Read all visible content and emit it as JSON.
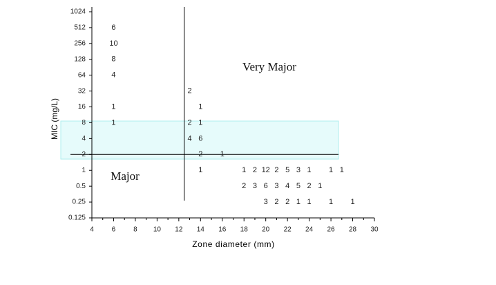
{
  "chart_data": {
    "type": "count-scatter",
    "x_label": "Zone diameter (mm)",
    "y_label": "MIC (mg/L)",
    "xlim": [
      4,
      30
    ],
    "xticks": [
      4,
      6,
      8,
      10,
      12,
      14,
      16,
      18,
      20,
      22,
      24,
      26,
      28,
      30
    ],
    "ylim": [
      0.125,
      1024
    ],
    "yticks": [
      1024,
      512,
      256,
      128,
      64,
      32,
      16,
      8,
      4,
      2,
      1,
      0.5,
      0.25,
      0.125
    ],
    "y_log_base": 2,
    "breakpoints": {
      "zone": 12.5,
      "mic": 2
    },
    "annotations": [
      "Very Major",
      "Major"
    ],
    "points": {
      "x": [
        6,
        6,
        6,
        6,
        6,
        6,
        13,
        13,
        13,
        14,
        14,
        14,
        14,
        14,
        16,
        18,
        19,
        20,
        21,
        22,
        23,
        24,
        26,
        27,
        18,
        19,
        20,
        21,
        22,
        23,
        24,
        25,
        20,
        21,
        22,
        23,
        24,
        26,
        28
      ],
      "y": [
        512,
        256,
        128,
        64,
        16,
        8,
        32,
        8,
        4,
        16,
        8,
        4,
        2,
        1,
        2,
        1,
        1,
        1,
        1,
        1,
        1,
        1,
        1,
        1,
        0.5,
        0.5,
        0.5,
        0.5,
        0.5,
        0.5,
        0.5,
        0.5,
        0.25,
        0.25,
        0.25,
        0.25,
        0.25,
        0.25,
        0.25
      ],
      "values": [
        6,
        10,
        8,
        4,
        1,
        1,
        2,
        2,
        4,
        1,
        1,
        6,
        2,
        1,
        1,
        1,
        2,
        12,
        2,
        5,
        3,
        1,
        1,
        1,
        2,
        3,
        6,
        3,
        4,
        5,
        2,
        1,
        3,
        2,
        2,
        1,
        1,
        1,
        1
      ],
      "color": "#222222"
    }
  }
}
